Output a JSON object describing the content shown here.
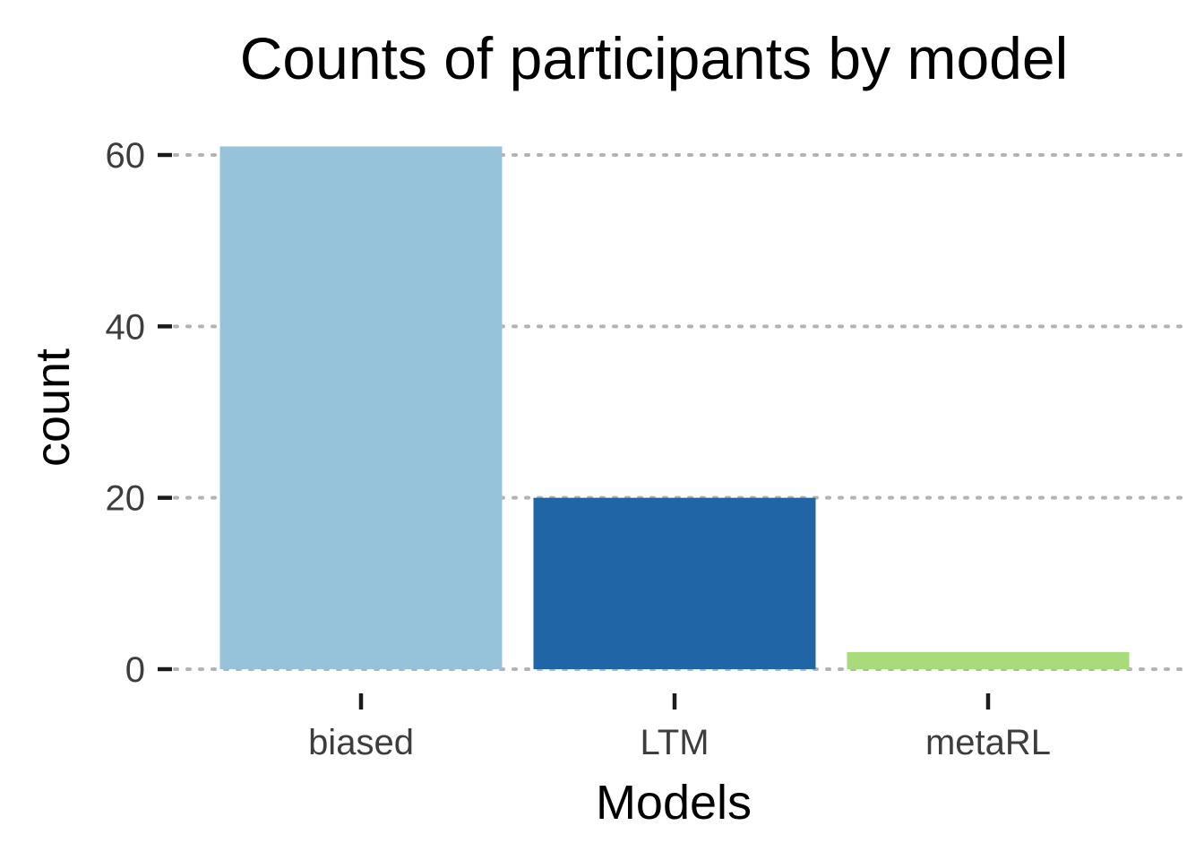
{
  "chart_data": {
    "type": "bar",
    "title": "Counts of participants by model",
    "xlabel": "Models",
    "ylabel": "count",
    "categories": [
      "biased",
      "LTM",
      "metaRL"
    ],
    "values": [
      61,
      20,
      2
    ],
    "colors": [
      "#97c3da",
      "#2065a6",
      "#a8db79"
    ],
    "ylim": [
      0,
      61
    ],
    "yticks": [
      0,
      20,
      40,
      60
    ],
    "grid": true,
    "grid_color": "#b3b3b3"
  }
}
